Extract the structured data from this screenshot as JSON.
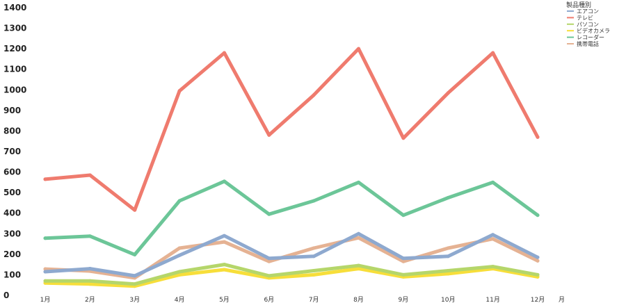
{
  "chart_data": {
    "type": "line",
    "categories": [
      "1月",
      "2月",
      "3月",
      "4月",
      "5月",
      "6月",
      "7月",
      "8月",
      "9月",
      "10月",
      "11月",
      "12月"
    ],
    "xlabel": "月",
    "ylabel": "",
    "ylim": [
      0,
      1400
    ],
    "yticks": [
      0,
      100,
      200,
      300,
      400,
      500,
      600,
      700,
      800,
      900,
      1000,
      1100,
      1200,
      1300,
      1400
    ],
    "grid": false,
    "legend": {
      "title": "製品種別",
      "position": "top-right"
    },
    "series": [
      {
        "name": "エアコン",
        "color": "#8EA9CF",
        "values": [
          115,
          130,
          95,
          195,
          290,
          180,
          190,
          300,
          180,
          190,
          295,
          185
        ]
      },
      {
        "name": "テレビ",
        "color": "#EF7B6E",
        "values": [
          565,
          585,
          415,
          995,
          1180,
          780,
          975,
          1200,
          765,
          985,
          1180,
          770
        ]
      },
      {
        "name": "パソコン",
        "color": "#B5D66A",
        "values": [
          70,
          70,
          55,
          115,
          150,
          95,
          120,
          145,
          100,
          120,
          140,
          100
        ]
      },
      {
        "name": "ビデオカメラ",
        "color": "#F7DE3A",
        "values": [
          60,
          55,
          45,
          100,
          125,
          85,
          100,
          130,
          90,
          105,
          130,
          90
        ]
      },
      {
        "name": "レコーダー",
        "color": "#6CC698",
        "values": [
          278,
          288,
          198,
          460,
          555,
          395,
          460,
          550,
          390,
          475,
          550,
          390
        ]
      },
      {
        "name": "携帯電話",
        "color": "#E5B293",
        "values": [
          128,
          118,
          85,
          230,
          260,
          165,
          230,
          280,
          165,
          230,
          275,
          168
        ]
      }
    ]
  }
}
